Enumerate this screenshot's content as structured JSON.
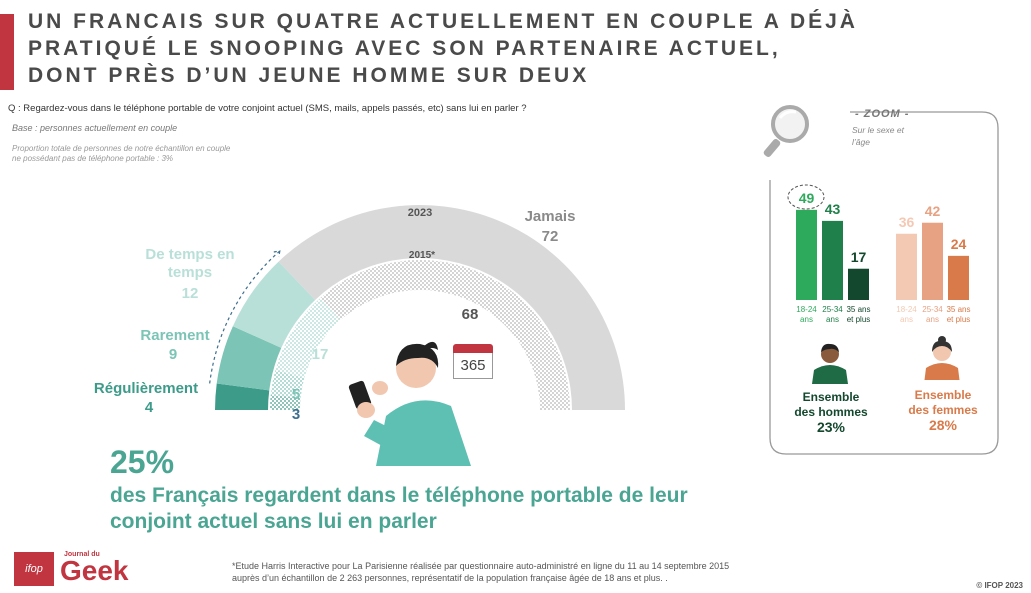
{
  "title": {
    "line1": "UN FRANCAIS SUR QUATRE ACTUELLEMENT EN COUPLE A DÉJÀ",
    "line2": "PRATIQUÉ LE SNOOPING AVEC SON PARTENAIRE ACTUEL,",
    "line3": "DONT PRÈS D’UN JEUNE HOMME SUR DEUX"
  },
  "question": "Q : Regardez-vous dans le téléphone portable de votre conjoint actuel (SMS, mails, appels passés, etc) sans lui en parler ?",
  "base": "Base : personnes actuellement en couple",
  "proportion": "Proportion totale de personnes de notre échantillon en couple ne possédant pas de téléphone portable : 3%",
  "gauge": {
    "year_outer": "2023",
    "year_inner": "2015*",
    "calendar_text": "365"
  },
  "chart_data": [
    {
      "type": "gauge",
      "series": [
        {
          "name": "2023",
          "categories": [
            "Régulièrement",
            "Rarement",
            "De temps en temps",
            "Jamais"
          ],
          "values": [
            4,
            9,
            12,
            72
          ]
        },
        {
          "name": "2015*",
          "categories": [
            "Régulièrement",
            "Rarement",
            "De temps en temps",
            "Jamais"
          ],
          "values": [
            3,
            5,
            17,
            68
          ]
        }
      ],
      "labels": {
        "reg": {
          "name": "Régulièrement",
          "value": "4",
          "value_2015": "3"
        },
        "rar": {
          "name": "Rarement",
          "value": "9",
          "value_2015": "5"
        },
        "tmp": {
          "name": "De temps en temps",
          "value": "12",
          "value_2015": "17"
        },
        "jam": {
          "name": "Jamais",
          "value": "72",
          "value_2015": "68"
        }
      },
      "colors": {
        "reg": "#3d9b8a",
        "rar": "#7cc4b6",
        "tmp": "#b9e0d8",
        "jam": "#d9d9d9"
      }
    },
    {
      "type": "bar",
      "title": "Ensemble des hommes",
      "categories": [
        "18-24 ans",
        "25-34 ans",
        "35 ans et plus"
      ],
      "values": [
        49,
        43,
        17
      ],
      "colors": [
        "#2eaa5c",
        "#20804b",
        "#14482e"
      ]
    },
    {
      "type": "bar",
      "title": "Ensemble des femmes",
      "categories": [
        "18-24 ans",
        "25-34 ans",
        "35 ans et plus"
      ],
      "values": [
        36,
        42,
        24
      ],
      "colors": [
        "#f4c9b3",
        "#e6a283",
        "#d97a4a"
      ]
    }
  ],
  "zoom": {
    "title": "- ZOOM -",
    "subtitle": "Sur le sexe et l’âge",
    "men": {
      "label1": "Ensemble",
      "label2": "des hommes",
      "pct": "23%",
      "bars": [
        {
          "v": "49",
          "a1": "18-24",
          "a2": "ans"
        },
        {
          "v": "43",
          "a1": "25-34",
          "a2": "ans"
        },
        {
          "v": "17",
          "a1": "35 ans",
          "a2": "et plus"
        }
      ]
    },
    "women": {
      "label1": "Ensemble",
      "label2": "des femmes",
      "pct": "28%",
      "bars": [
        {
          "v": "36",
          "a1": "18-24",
          "a2": "ans"
        },
        {
          "v": "42",
          "a1": "25-34",
          "a2": "ans"
        },
        {
          "v": "24",
          "a1": "35 ans",
          "a2": "et plus"
        }
      ]
    }
  },
  "headline": {
    "pct": "25%",
    "text": "des Français regardent dans le téléphone portable de leur conjoint actuel sans lui en parler"
  },
  "footnote": {
    "line1": "*Etude Harris Interactive pour La Parisienne réalisée par questionnaire auto-administré en ligne du 11 au 14 septembre 2015",
    "line2": "auprès d’un échantillon de 2 263 personnes, représentatif de la population française âgée de 18 ans et plus. ."
  },
  "copyright": "© IFOP 2023",
  "logos": {
    "ifop": "ifop",
    "journal": "Journal du",
    "geek": "Geek"
  }
}
